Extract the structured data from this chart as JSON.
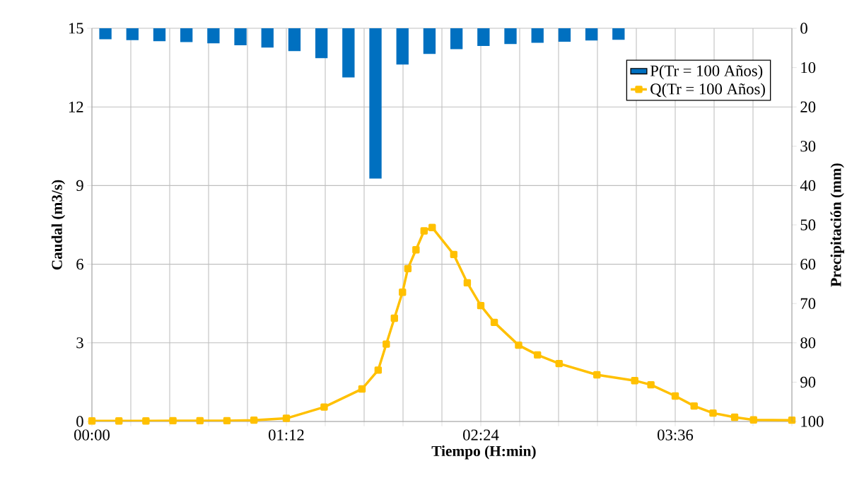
{
  "chart_data": {
    "type": "line",
    "xlabel": "Tiempo (H:min)",
    "ylabel": "Caudal (m3/s)",
    "y2label": "Precipitación (mm)",
    "xlim": [
      0,
      4.32
    ],
    "xticks": [
      {
        "value": 0,
        "label": "00:00"
      },
      {
        "value": 0.24,
        "label": null
      },
      {
        "value": 0.48,
        "label": null
      },
      {
        "value": 0.72,
        "label": null
      },
      {
        "value": 0.96,
        "label": null
      },
      {
        "value": 1.2,
        "label": "01:12"
      },
      {
        "value": 1.44,
        "label": null
      },
      {
        "value": 1.68,
        "label": null
      },
      {
        "value": 1.92,
        "label": null
      },
      {
        "value": 2.16,
        "label": null
      },
      {
        "value": 2.4,
        "label": "02:24"
      },
      {
        "value": 2.64,
        "label": null
      },
      {
        "value": 2.88,
        "label": null
      },
      {
        "value": 3.12,
        "label": null
      },
      {
        "value": 3.36,
        "label": null
      },
      {
        "value": 3.6,
        "label": "03:36"
      },
      {
        "value": 3.84,
        "label": null
      },
      {
        "value": 4.08,
        "label": null
      },
      {
        "value": 4.32,
        "label": null
      }
    ],
    "ylim": [
      0,
      15
    ],
    "yticks": [
      0,
      3,
      6,
      9,
      12,
      15
    ],
    "y2lim": [
      100,
      0
    ],
    "y2ticks": [
      0,
      10,
      20,
      30,
      40,
      50,
      60,
      70,
      80,
      90,
      100
    ],
    "grid": true,
    "legend": "top right",
    "marker": "square",
    "series": [
      {
        "name": "P(Tr = 100 Años)",
        "type": "bar",
        "axis": "y2",
        "color": "#0070c0",
        "x": [
          0.0833,
          0.25,
          0.4167,
          0.5833,
          0.75,
          0.9167,
          1.0833,
          1.25,
          1.4167,
          1.5833,
          1.75,
          1.9167,
          2.0833,
          2.25,
          2.4167,
          2.5833,
          2.75,
          2.9167,
          3.0833,
          3.25
        ],
        "values": [
          2.8,
          3.0,
          3.3,
          3.5,
          3.8,
          4.3,
          4.9,
          5.8,
          7.6,
          12.5,
          38.2,
          9.2,
          6.5,
          5.3,
          4.5,
          4.0,
          3.7,
          3.4,
          3.1,
          2.9
        ]
      },
      {
        "name": "Q(Tr = 100 Años)",
        "color": "#ffc000",
        "x": [
          0,
          0.1667,
          0.3333,
          0.5,
          0.6667,
          0.8333,
          1,
          1.2,
          1.4333,
          1.6667,
          1.7667,
          1.8167,
          1.8667,
          1.9167,
          1.95,
          2,
          2.05,
          2.1,
          2.2333,
          2.3167,
          2.4,
          2.4833,
          2.6333,
          2.75,
          2.8833,
          3.1167,
          3.35,
          3.45,
          3.6,
          3.7167,
          3.8333,
          3.9667,
          4.0833,
          4.32
        ],
        "values": [
          0.02,
          0.02,
          0.02,
          0.03,
          0.03,
          0.03,
          0.05,
          0.12,
          0.55,
          1.24,
          1.96,
          2.95,
          3.94,
          4.93,
          5.83,
          6.55,
          7.27,
          7.4,
          6.37,
          5.29,
          4.42,
          3.78,
          2.91,
          2.54,
          2.21,
          1.78,
          1.56,
          1.4,
          0.97,
          0.59,
          0.32,
          0.16,
          0.06,
          0.05
        ]
      }
    ]
  }
}
